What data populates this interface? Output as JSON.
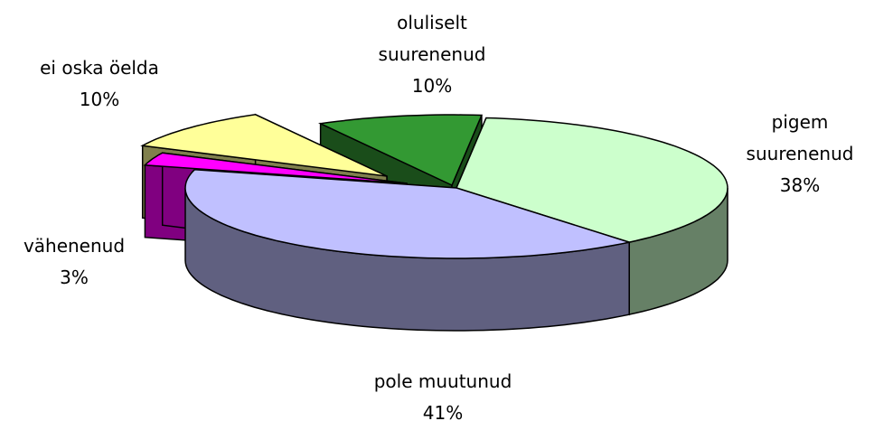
{
  "chart_data": {
    "type": "pie",
    "three_d": true,
    "categories": [
      "oluliselt suurenenud",
      "pigem suurenenud",
      "pole muutunud",
      "vähenenud",
      "ei oska öelda"
    ],
    "values": [
      10,
      38,
      41,
      3,
      10
    ],
    "value_labels": [
      "10%",
      "38%",
      "41%",
      "3%",
      "10%"
    ],
    "colors": [
      "#339933",
      "#ccffcc",
      "#c0c0ff",
      "#ff00ff",
      "#ffff99"
    ]
  }
}
